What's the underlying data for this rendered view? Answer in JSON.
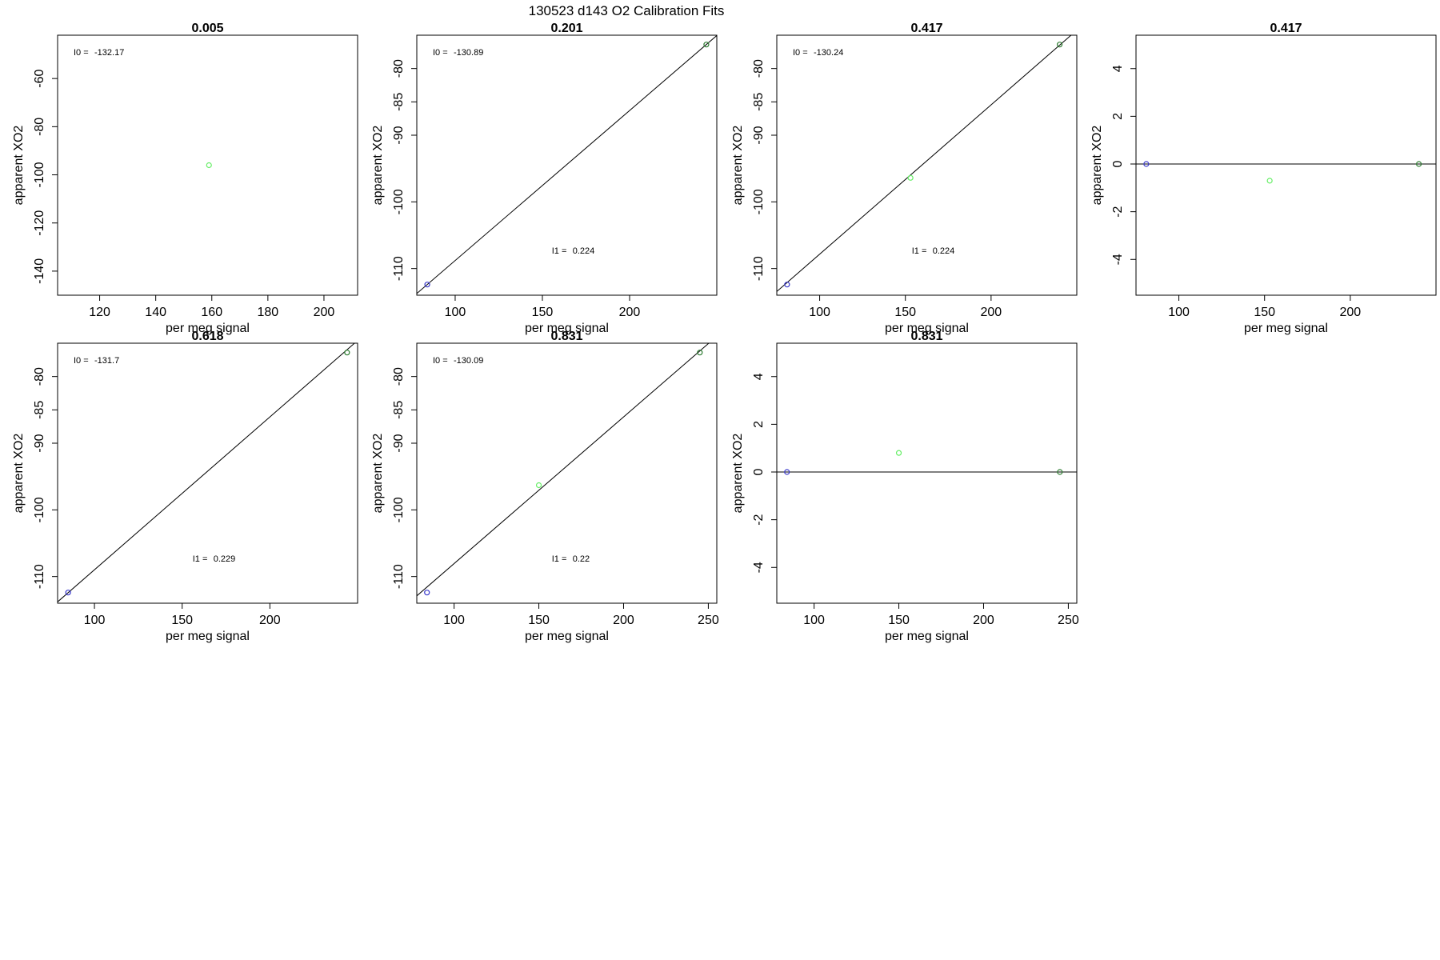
{
  "page_title": "130523   d143   O2 Calibration Fits",
  "colors": {
    "blue_point": "#3b3bcc",
    "green_point": "#66ee66",
    "darkgreen_point": "#2e7d32",
    "axis": "#000000"
  },
  "chart_data": [
    {
      "type": "scatter",
      "title": "0.005",
      "xlabel": "per meg signal",
      "ylabel": "apparent XO2",
      "xlim": [
        105,
        212
      ],
      "ylim": [
        -150,
        -42
      ],
      "xticks": [
        120,
        140,
        160,
        180,
        200
      ],
      "yticks": [
        -140,
        -120,
        -100,
        -80,
        -60
      ],
      "points": [
        {
          "x": 159,
          "y": -96,
          "color": "#66ee66"
        }
      ],
      "line": null,
      "annotations": [
        {
          "label": "I0 =",
          "value": "-132.17",
          "pos": "top-left"
        }
      ]
    },
    {
      "type": "scatter",
      "title": "0.201",
      "xlabel": "per meg signal",
      "ylabel": "apparent XO2",
      "xlim": [
        78,
        250
      ],
      "ylim": [
        -114,
        -75
      ],
      "xticks": [
        100,
        150,
        200
      ],
      "yticks": [
        -110,
        -100,
        -90,
        -85,
        -80
      ],
      "points": [
        {
          "x": 84,
          "y": -112.4,
          "color": "#3b3bcc"
        },
        {
          "x": 244,
          "y": -76.4,
          "color": "#2e7d32"
        }
      ],
      "line": {
        "x": [
          78,
          250
        ],
        "y": [
          -113.75,
          -75.05
        ]
      },
      "annotations": [
        {
          "label": "I0 =",
          "value": "-130.89",
          "pos": "top-left"
        },
        {
          "label": "I1 =",
          "value": "0.224",
          "pos": "lower-middle"
        }
      ]
    },
    {
      "type": "scatter",
      "title": "0.417",
      "xlabel": "per meg signal",
      "ylabel": "apparent XO2",
      "xlim": [
        75,
        250
      ],
      "ylim": [
        -114,
        -75
      ],
      "xticks": [
        100,
        150,
        200
      ],
      "yticks": [
        -110,
        -100,
        -90,
        -85,
        -80
      ],
      "points": [
        {
          "x": 81,
          "y": -112.4,
          "color": "#3b3bcc"
        },
        {
          "x": 153,
          "y": -96.4,
          "color": "#66ee66"
        },
        {
          "x": 240,
          "y": -76.4,
          "color": "#2e7d32"
        }
      ],
      "line": {
        "x": [
          75,
          250
        ],
        "y": [
          -113.45,
          -74.25
        ]
      },
      "annotations": [
        {
          "label": "I0 =",
          "value": "-130.24",
          "pos": "top-left"
        },
        {
          "label": "I1 =",
          "value": "0.224",
          "pos": "lower-middle"
        }
      ]
    },
    {
      "type": "scatter",
      "title": "0.417",
      "xlabel": "per meg signal",
      "ylabel": "apparent XO2",
      "xlim": [
        75,
        250
      ],
      "ylim": [
        -5.5,
        5.4
      ],
      "xticks": [
        100,
        150,
        200
      ],
      "yticks": [
        -4,
        -2,
        0,
        2,
        4
      ],
      "points": [
        {
          "x": 81,
          "y": 0,
          "color": "#3b3bcc"
        },
        {
          "x": 153,
          "y": -0.7,
          "color": "#66ee66"
        },
        {
          "x": 240,
          "y": 0,
          "color": "#2e7d32"
        }
      ],
      "line": {
        "x": [
          75,
          250
        ],
        "y": [
          0,
          0
        ]
      },
      "annotations": []
    },
    {
      "type": "scatter",
      "title": "0.618",
      "xlabel": "per meg signal",
      "ylabel": "apparent XO2",
      "xlim": [
        79,
        250
      ],
      "ylim": [
        -114,
        -75
      ],
      "xticks": [
        100,
        150,
        200
      ],
      "yticks": [
        -110,
        -100,
        -90,
        -85,
        -80
      ],
      "points": [
        {
          "x": 85,
          "y": -112.4,
          "color": "#3b3bcc"
        },
        {
          "x": 244,
          "y": -76.4,
          "color": "#2e7d32"
        }
      ],
      "line": {
        "x": [
          79,
          250
        ],
        "y": [
          -113.8,
          -74.6
        ]
      },
      "annotations": [
        {
          "label": "I0 =",
          "value": "-131.7",
          "pos": "top-left"
        },
        {
          "label": "I1 =",
          "value": "0.229",
          "pos": "lower-middle"
        }
      ]
    },
    {
      "type": "scatter",
      "title": "0.831",
      "xlabel": "per meg signal",
      "ylabel": "apparent XO2",
      "xlim": [
        78,
        255
      ],
      "ylim": [
        -114,
        -75
      ],
      "xticks": [
        100,
        150,
        200,
        250
      ],
      "yticks": [
        -110,
        -100,
        -90,
        -85,
        -80
      ],
      "points": [
        {
          "x": 84,
          "y": -112.4,
          "color": "#3b3bcc"
        },
        {
          "x": 150,
          "y": -96.3,
          "color": "#66ee66"
        },
        {
          "x": 245,
          "y": -76.4,
          "color": "#2e7d32"
        }
      ],
      "line": {
        "x": [
          78,
          255
        ],
        "y": [
          -112.9,
          -73.96
        ]
      },
      "annotations": [
        {
          "label": "I0 =",
          "value": "-130.09",
          "pos": "top-left"
        },
        {
          "label": "I1 =",
          "value": "0.22",
          "pos": "lower-middle"
        }
      ]
    },
    {
      "type": "scatter",
      "title": "0.831",
      "xlabel": "per meg signal",
      "ylabel": "apparent XO2",
      "xlim": [
        78,
        255
      ],
      "ylim": [
        -5.5,
        5.4
      ],
      "xticks": [
        100,
        150,
        200,
        250
      ],
      "yticks": [
        -4,
        -2,
        0,
        2,
        4
      ],
      "points": [
        {
          "x": 84,
          "y": 0,
          "color": "#3b3bcc"
        },
        {
          "x": 150,
          "y": 0.8,
          "color": "#66ee66"
        },
        {
          "x": 245,
          "y": 0,
          "color": "#2e7d32"
        }
      ],
      "line": {
        "x": [
          78,
          255
        ],
        "y": [
          0,
          0
        ]
      },
      "annotations": []
    }
  ]
}
